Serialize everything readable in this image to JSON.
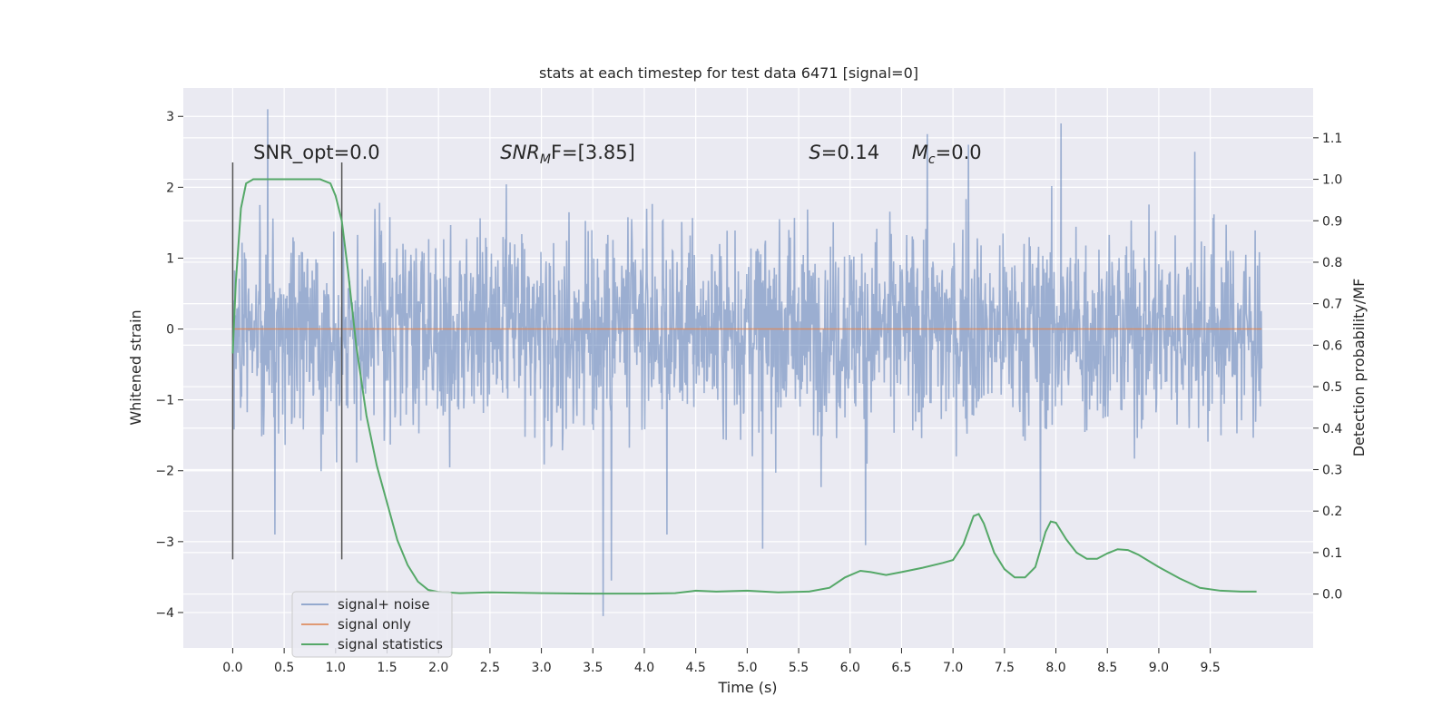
{
  "colors": {
    "background": "#eaeaf2",
    "grid": "#ffffff",
    "noise": "#4c72b0",
    "signal_only": "#dd8452",
    "statistics": "#55a868",
    "vline": "#555555",
    "text": "#262626"
  },
  "chart_data": {
    "type": "line",
    "title": "stats at each timestep for test data 6471 [signal=0]",
    "xlabel": "Time (s)",
    "ylabel": "Whitened strain",
    "y2label": "Detection probability/MF",
    "xlim": [
      -0.48,
      10.5
    ],
    "ylim": [
      -4.5,
      3.4
    ],
    "y2lim": [
      -0.13,
      1.22
    ],
    "x_ticks": [
      0.0,
      0.5,
      1.0,
      1.5,
      2.0,
      2.5,
      3.0,
      3.5,
      4.0,
      4.5,
      5.0,
      5.5,
      6.0,
      6.5,
      7.0,
      7.5,
      8.0,
      8.5,
      9.0,
      9.5
    ],
    "x_tick_labels": [
      "0.0",
      "0.5",
      "1.0",
      "1.5",
      "2.0",
      "2.5",
      "3.0",
      "3.5",
      "4.0",
      "4.5",
      "5.0",
      "5.5",
      "6.0",
      "6.5",
      "7.0",
      "7.5",
      "8.0",
      "8.5",
      "9.0",
      "9.5"
    ],
    "y_ticks": [
      -4,
      -3,
      -2,
      -1,
      0,
      1,
      2,
      3
    ],
    "y_tick_labels": [
      "−4",
      "−3",
      "−2",
      "−1",
      "0",
      "1",
      "2",
      "3"
    ],
    "y2_ticks": [
      0.0,
      0.1,
      0.2,
      0.3,
      0.4,
      0.5,
      0.6,
      0.7,
      0.8,
      0.9,
      1.0,
      1.1
    ],
    "y2_tick_labels": [
      "0.0",
      "0.1",
      "0.2",
      "0.3",
      "0.4",
      "0.5",
      "0.6",
      "0.7",
      "0.8",
      "0.9",
      "1.0",
      "1.1"
    ],
    "grid": true,
    "legend_position": "lower-left",
    "annotations": [
      {
        "text": "SNR_opt=0.0",
        "x": 0.2,
        "y": 2.4
      },
      {
        "text": "SNR",
        "sub": "M",
        "tail": "F=[3.85]",
        "italic": true,
        "x": 2.6,
        "y": 2.4
      },
      {
        "text": "S",
        "tail": "=0.14",
        "italic": true,
        "x": 5.6,
        "y": 2.4
      },
      {
        "text": "M",
        "sub": "c",
        "tail": "=0.0",
        "italic": true,
        "x": 6.6,
        "y": 2.4
      }
    ],
    "vlines": [
      {
        "x": 0.0,
        "y": [
          -3.25,
          2.35
        ]
      },
      {
        "x": 1.06,
        "y": [
          -3.25,
          2.35
        ]
      }
    ],
    "series": [
      {
        "name": "signal+ noise",
        "axis": "left",
        "style": "noise",
        "x_range": [
          0.0,
          10.0
        ],
        "envelope_typical": [
          -1.6,
          1.9
        ],
        "extremes": [
          {
            "x": 0.34,
            "y": 3.1
          },
          {
            "x": 3.6,
            "y": -4.05
          },
          {
            "x": 7.85,
            "y": -3.0
          },
          {
            "x": 8.05,
            "y": 2.9
          },
          {
            "x": 6.15,
            "y": -3.05
          },
          {
            "x": 5.15,
            "y": -3.1
          },
          {
            "x": 3.68,
            "y": -3.55
          },
          {
            "x": 0.41,
            "y": -2.9
          },
          {
            "x": 4.22,
            "y": -2.9
          },
          {
            "x": 6.75,
            "y": 2.75
          },
          {
            "x": 7.15,
            "y": 2.6
          },
          {
            "x": 9.35,
            "y": 2.5
          }
        ]
      },
      {
        "name": "signal only",
        "axis": "left",
        "x": [
          0.0,
          10.0
        ],
        "y": [
          0.0,
          0.0
        ]
      },
      {
        "name": "signal statistics",
        "axis": "right",
        "x": [
          0.0,
          0.03,
          0.08,
          0.13,
          0.2,
          0.3,
          0.45,
          0.6,
          0.75,
          0.85,
          0.95,
          1.0,
          1.06,
          1.12,
          1.2,
          1.3,
          1.4,
          1.5,
          1.6,
          1.7,
          1.8,
          1.9,
          2.0,
          2.2,
          2.5,
          3.0,
          3.5,
          4.0,
          4.3,
          4.5,
          4.7,
          5.0,
          5.3,
          5.6,
          5.8,
          5.95,
          6.1,
          6.2,
          6.35,
          6.5,
          6.7,
          6.9,
          7.0,
          7.1,
          7.2,
          7.25,
          7.3,
          7.4,
          7.5,
          7.6,
          7.7,
          7.8,
          7.9,
          7.95,
          8.0,
          8.1,
          8.2,
          8.3,
          8.4,
          8.5,
          8.6,
          8.7,
          8.8,
          9.0,
          9.2,
          9.4,
          9.6,
          9.8,
          9.95
        ],
        "y": [
          0.58,
          0.75,
          0.93,
          0.99,
          1.0,
          1.0,
          1.0,
          1.0,
          1.0,
          1.0,
          0.99,
          0.96,
          0.9,
          0.78,
          0.6,
          0.43,
          0.31,
          0.22,
          0.13,
          0.07,
          0.03,
          0.01,
          0.005,
          0.002,
          0.004,
          0.002,
          0.001,
          0.001,
          0.002,
          0.008,
          0.006,
          0.008,
          0.004,
          0.006,
          0.015,
          0.04,
          0.056,
          0.053,
          0.046,
          0.053,
          0.063,
          0.075,
          0.082,
          0.12,
          0.188,
          0.193,
          0.17,
          0.1,
          0.06,
          0.04,
          0.04,
          0.065,
          0.15,
          0.175,
          0.172,
          0.132,
          0.1,
          0.085,
          0.085,
          0.098,
          0.108,
          0.106,
          0.095,
          0.065,
          0.038,
          0.015,
          0.008,
          0.006,
          0.006
        ]
      }
    ]
  }
}
